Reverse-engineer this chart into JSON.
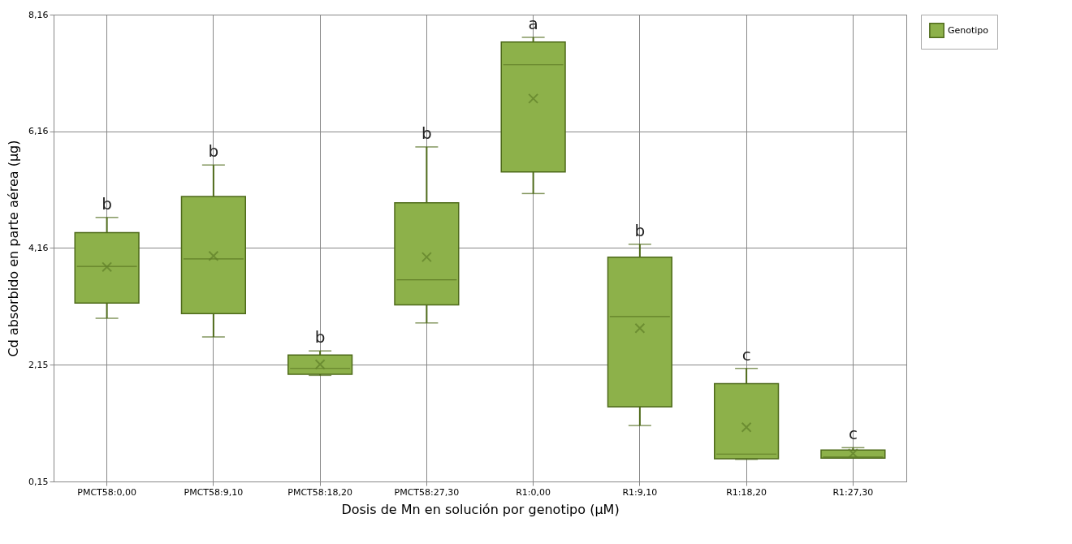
{
  "chart_data": {
    "type": "box",
    "xlabel": "Dosis de Mn en solución por genotipo (µM)",
    "ylabel": "Cd absorbido en parte aérea (µg)",
    "categories": [
      "PMCT58:0,00",
      "PMCT58:9,10",
      "PMCT58:18,20",
      "PMCT58:27,30",
      "R1:0,00",
      "R1:9,10",
      "R1:18,20",
      "R1:27,30"
    ],
    "series": [
      {
        "name": "Genotipo",
        "color": "#8db14a",
        "boxes": [
          {
            "low": 2.95,
            "q1": 3.21,
            "median": 3.84,
            "q3": 4.42,
            "high": 4.68,
            "mean": 3.83
          },
          {
            "low": 2.63,
            "q1": 3.03,
            "median": 3.97,
            "q3": 5.04,
            "high": 5.58,
            "mean": 4.02
          },
          {
            "low": 1.97,
            "q1": 1.99,
            "median": 2.09,
            "q3": 2.32,
            "high": 2.39,
            "mean": 2.16
          },
          {
            "low": 2.87,
            "q1": 3.18,
            "median": 3.61,
            "q3": 4.93,
            "high": 5.89,
            "mean": 4.0
          },
          {
            "low": 5.09,
            "q1": 5.46,
            "median": 7.3,
            "q3": 7.69,
            "high": 7.77,
            "mean": 6.72
          },
          {
            "low": 1.11,
            "q1": 1.43,
            "median": 2.98,
            "q3": 4.0,
            "high": 4.22,
            "mean": 2.78
          },
          {
            "low": 0.53,
            "q1": 0.54,
            "median": 0.62,
            "q3": 1.83,
            "high": 2.09,
            "mean": 1.08
          },
          {
            "low": 0.55,
            "q1": 0.55,
            "median": 0.57,
            "q3": 0.69,
            "high": 0.73,
            "mean": 0.63
          }
        ]
      }
    ],
    "ylim": [
      0.15,
      8.16
    ],
    "yticks": [
      {
        "value": 0.15,
        "label": "0,15"
      },
      {
        "value": 2.15,
        "label": "2,15"
      },
      {
        "value": 4.16,
        "label": "4,16"
      },
      {
        "value": 6.16,
        "label": "6,16"
      },
      {
        "value": 8.16,
        "label": "8,16"
      }
    ],
    "annotations": [
      "b",
      "b",
      "b",
      "b",
      "a",
      "b",
      "c",
      "c"
    ],
    "grid": true,
    "legend": "top right"
  }
}
